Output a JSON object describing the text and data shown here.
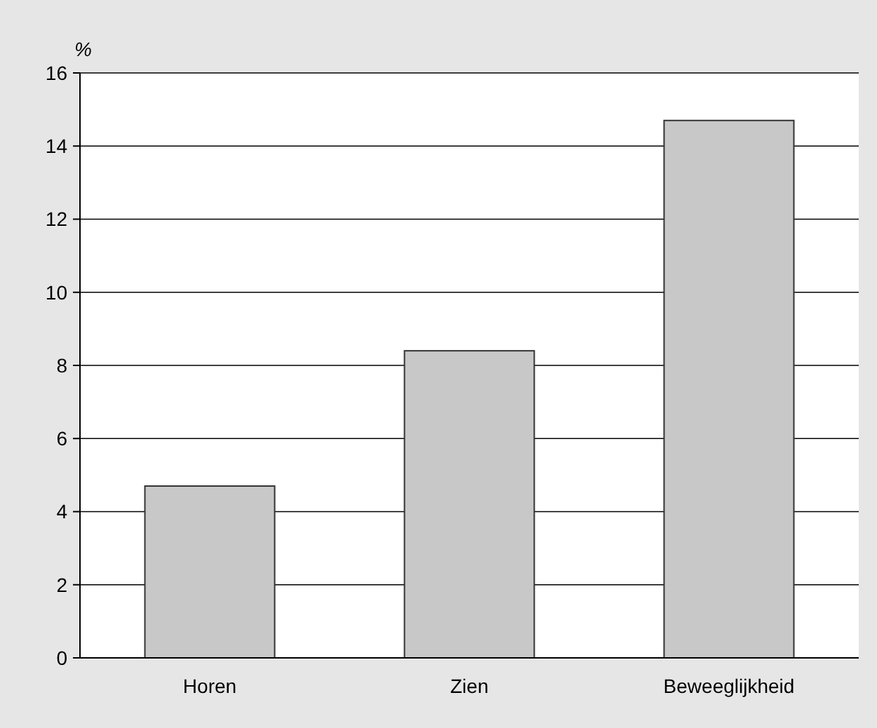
{
  "chart_data": {
    "type": "bar",
    "ylabel": "%",
    "categories": [
      "Horen",
      "Zien",
      "Beweeglijkheid"
    ],
    "values": [
      4.7,
      8.4,
      14.7
    ],
    "color": "#c8c8c8",
    "ylim": [
      0,
      16
    ],
    "yticks": [
      0,
      2,
      4,
      6,
      8,
      10,
      12,
      14,
      16
    ],
    "grid": "y"
  }
}
